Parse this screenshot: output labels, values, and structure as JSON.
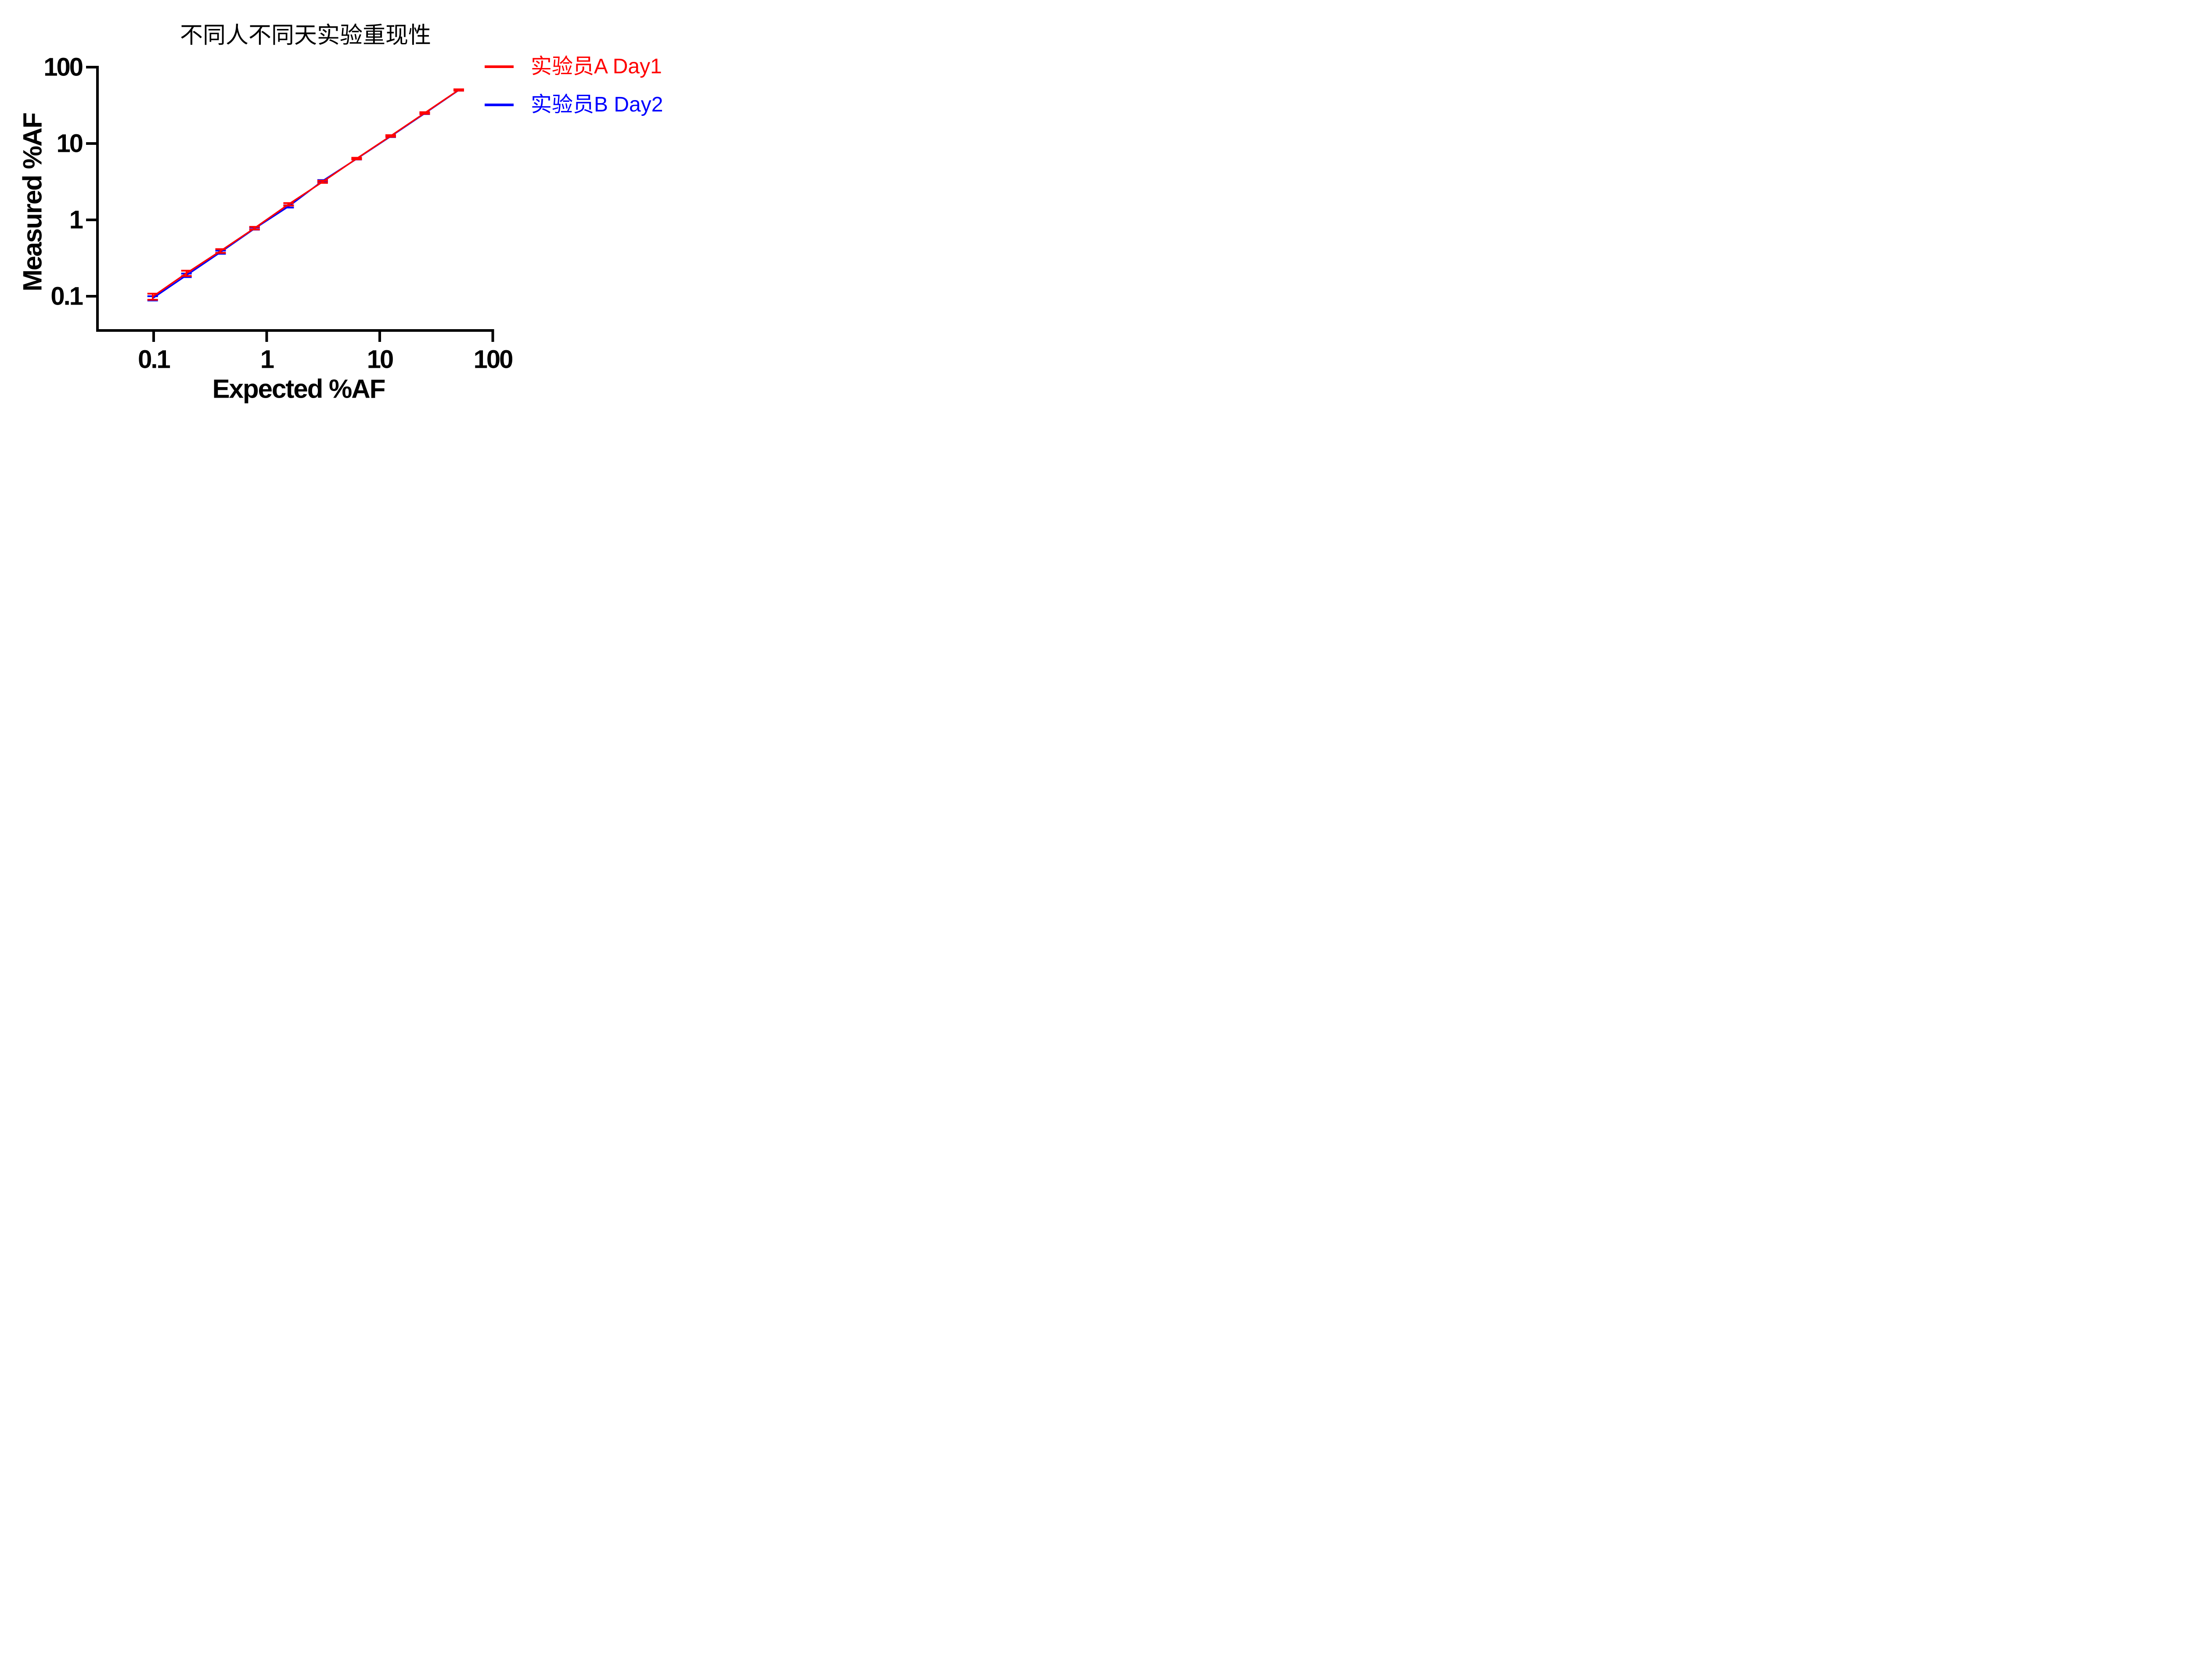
{
  "title": {
    "text": "不同人不同天实验重现性"
  },
  "legend": {
    "items": [
      {
        "label": "实验员A Day1"
      },
      {
        "label": "实验员B Day2"
      }
    ]
  },
  "axes": {
    "x": {
      "label": "Expected %AF",
      "tick_labels": [
        "0.1",
        "1",
        "10",
        "100"
      ]
    },
    "y": {
      "label": "Measured %AF",
      "tick_labels": [
        "100",
        "10",
        "1",
        "0.1"
      ]
    }
  },
  "chart_data": {
    "type": "line",
    "title": "不同人不同天实验重现性",
    "xlabel": "Expected %AF",
    "ylabel": "Measured %AF",
    "x_scale": "log10",
    "y_scale": "log10",
    "x_ticks": [
      0.1,
      1,
      10,
      100
    ],
    "y_ticks": [
      100,
      10,
      1,
      0.1
    ],
    "x_range": [
      0.032,
      110
    ],
    "y_range": [
      0.036,
      100
    ],
    "grid": "off",
    "legend_position": "top-right",
    "error_bars": "vertical, ±SD, with caps",
    "colors": {
      "axis": "#000000",
      "background": "#FFFFFF"
    },
    "series": [
      {
        "id": "a",
        "name": "实验员A Day1",
        "color": "#FF0000",
        "x": [
          0.098,
          0.195,
          0.391,
          0.781,
          1.563,
          3.125,
          6.25,
          12.5,
          25,
          50
        ],
        "y": [
          0.099,
          0.2,
          0.392,
          0.78,
          1.6,
          3.15,
          6.35,
          12.55,
          25.1,
          50.3
        ],
        "sd": [
          0.009,
          0.016,
          0.022,
          0.03,
          0.06,
          0.1,
          0.15,
          0.3,
          0.6,
          1.0
        ]
      },
      {
        "id": "b",
        "name": "实验员B Day2",
        "color": "#0000FF",
        "x": [
          0.098,
          0.195,
          0.391,
          0.781,
          1.563,
          3.125,
          6.25,
          12.5,
          25,
          50
        ],
        "y": [
          0.094,
          0.188,
          0.378,
          0.77,
          1.5,
          3.24,
          6.3,
          12.4,
          24.8,
          50.0
        ],
        "sd": [
          0.006,
          0.01,
          0.018,
          0.025,
          0.05,
          0.08,
          0.12,
          0.25,
          0.5,
          0.8
        ]
      }
    ]
  }
}
